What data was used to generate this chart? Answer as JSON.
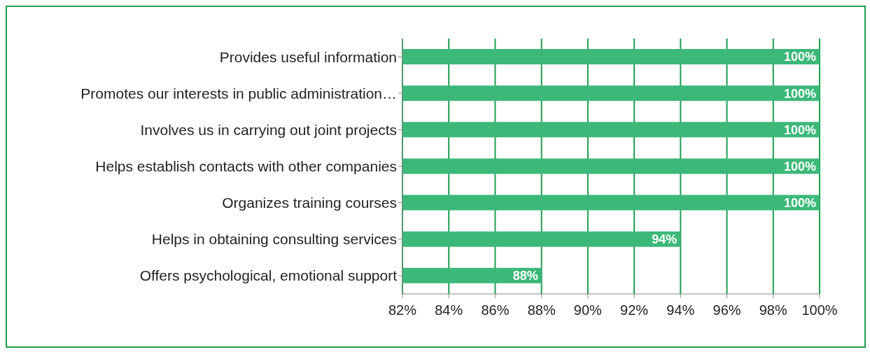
{
  "chart_data": {
    "type": "bar",
    "orientation": "horizontal",
    "categories": [
      "Provides useful information",
      "Promotes our interests in public administration…",
      "Involves us in carrying out joint projects",
      "Helps establish contacts with other companies",
      "Organizes training courses",
      "Helps in obtaining consulting services",
      "Offers psychological, emotional support"
    ],
    "values": [
      100,
      100,
      100,
      100,
      100,
      94,
      88
    ],
    "value_labels": [
      "100%",
      "100%",
      "100%",
      "100%",
      "100%",
      "94%",
      "88%"
    ],
    "color": "#3cb878",
    "xlim": [
      82,
      100
    ],
    "xticks": [
      {
        "value": 82,
        "label": "82%"
      },
      {
        "value": 84,
        "label": "84%"
      },
      {
        "value": 86,
        "label": "86%"
      },
      {
        "value": 88,
        "label": "88%"
      },
      {
        "value": 90,
        "label": "90%"
      },
      {
        "value": 92,
        "label": "92%"
      },
      {
        "value": 94,
        "label": "94%"
      },
      {
        "value": 96,
        "label": "96%"
      },
      {
        "value": 98,
        "label": "98%"
      },
      {
        "value": 100,
        "label": "100%"
      }
    ],
    "grid": "x",
    "legend": false
  }
}
